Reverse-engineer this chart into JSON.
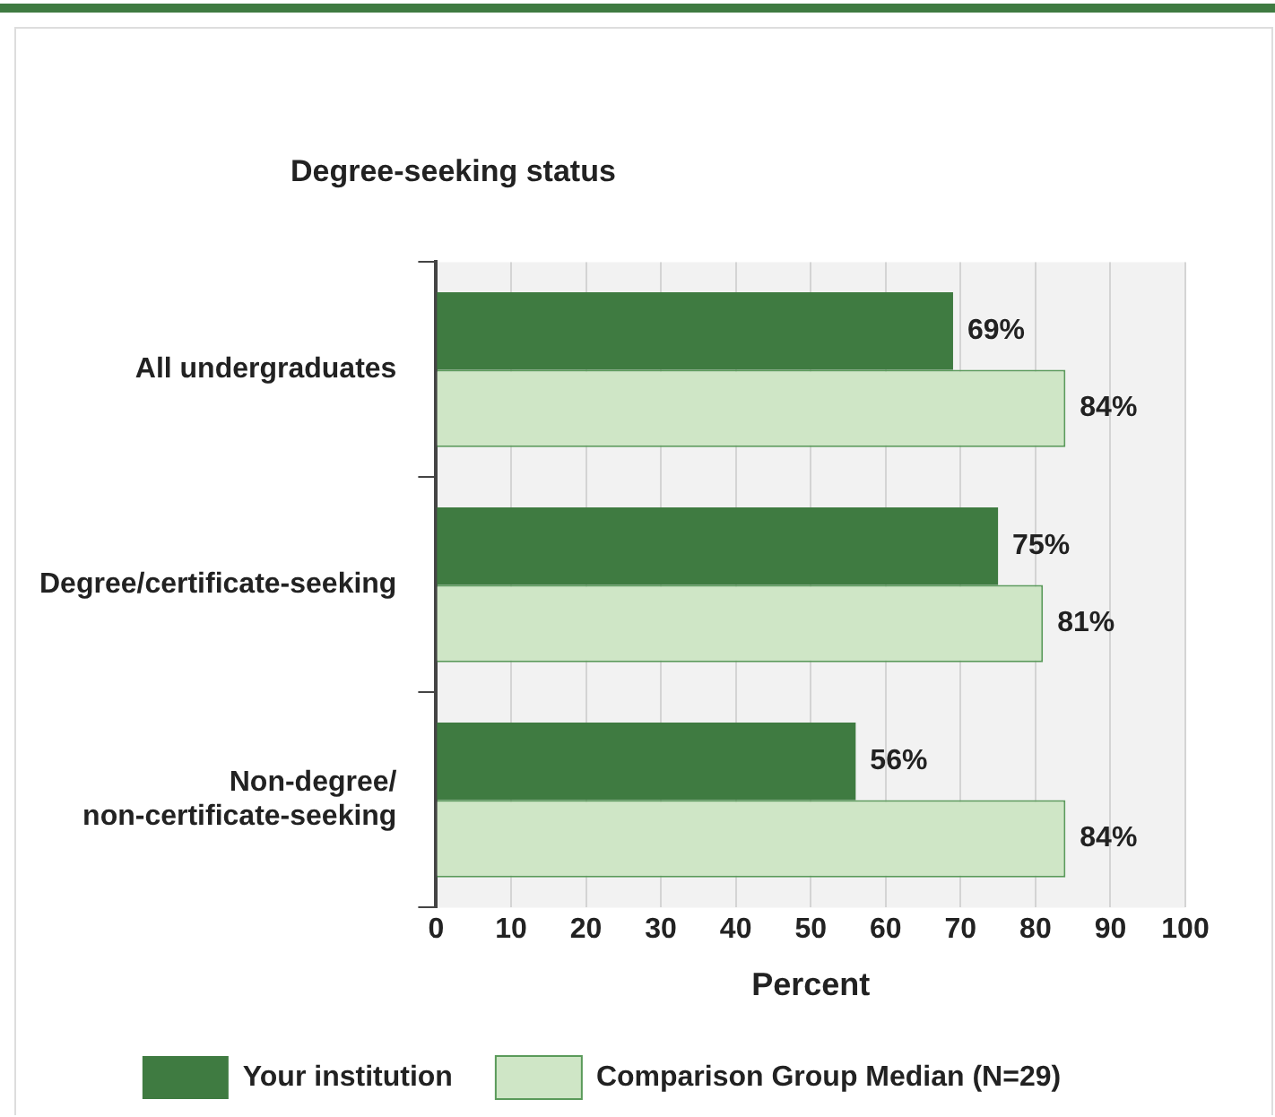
{
  "chart_data": {
    "type": "bar",
    "orientation": "horizontal",
    "title": "Degree-seeking status",
    "xlabel": "Percent",
    "categories": [
      "All undergraduates",
      "Degree/certificate-seeking",
      "Non-degree/non-certificate-seeking"
    ],
    "series": [
      {
        "name": "Your institution",
        "color": "#3f7b41",
        "values": [
          69,
          75,
          56
        ],
        "value_labels": [
          "69%",
          "75%",
          "56%"
        ]
      },
      {
        "name": "Comparison Group Median (N=29)",
        "color": "#cfe6c6",
        "values": [
          84,
          81,
          84
        ],
        "value_labels": [
          "84%",
          "81%",
          "84%"
        ]
      }
    ],
    "xlim": [
      0,
      100
    ],
    "xticks": [
      0,
      10,
      20,
      30,
      40,
      50,
      60,
      70,
      80,
      90,
      100
    ],
    "grid": "x",
    "legend": "bottom"
  }
}
